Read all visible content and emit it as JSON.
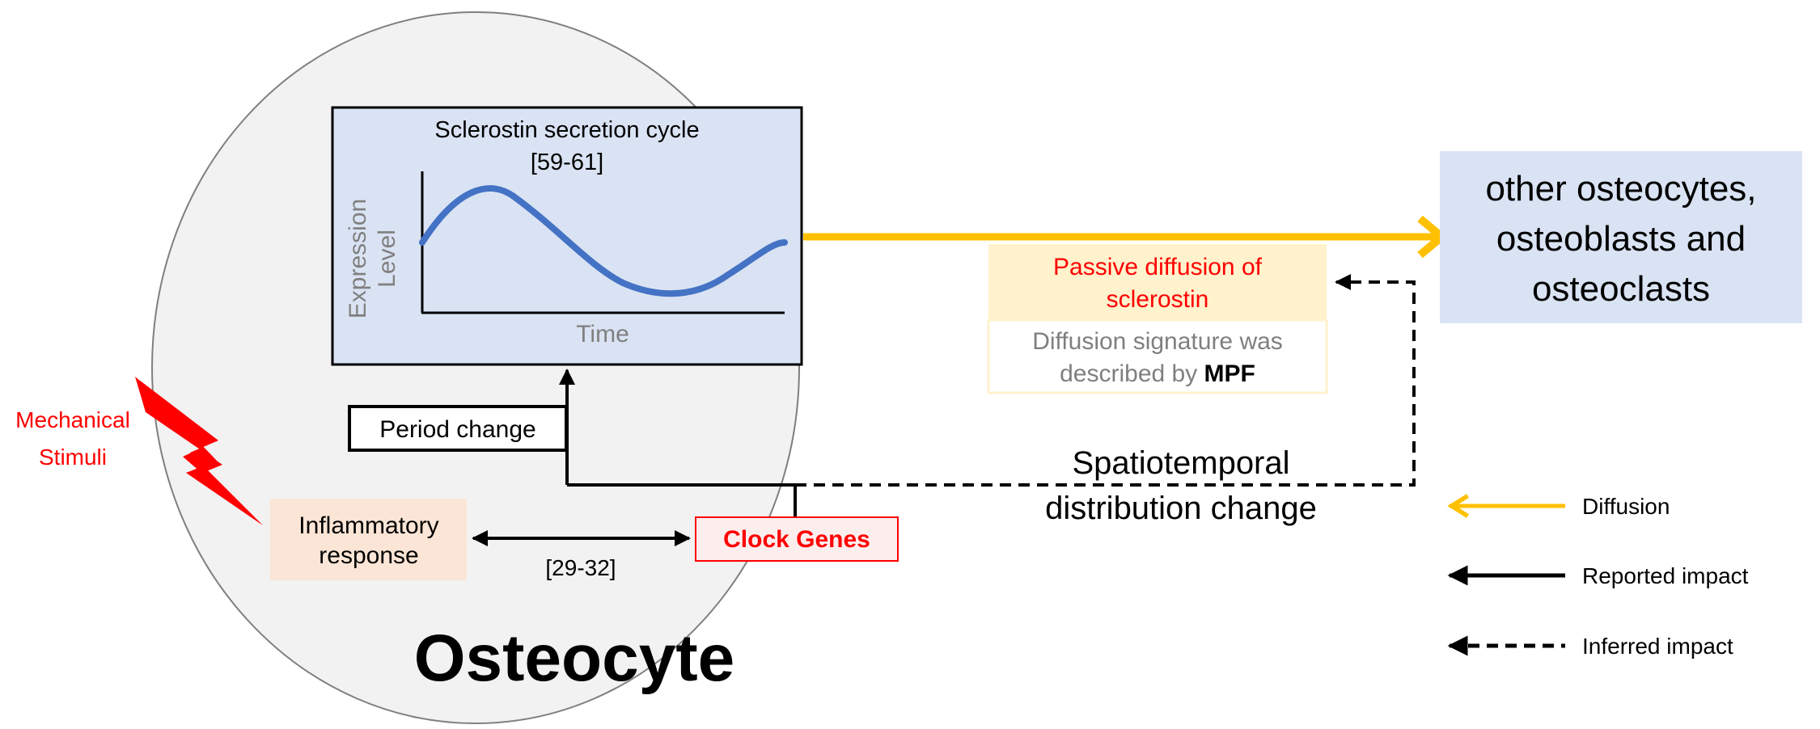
{
  "cell": {
    "label": "Osteocyte"
  },
  "stimulus": {
    "line1": "Mechanical",
    "line2": "Stimuli"
  },
  "secretion_box": {
    "title_line1": "Sclerostin secretion cycle",
    "title_line2": "[59-61]",
    "y_axis_line1": "Expression",
    "y_axis_line2": "Level",
    "x_axis": "Time"
  },
  "period_change": {
    "label": "Period change"
  },
  "inflammatory": {
    "line1": "Inflammatory",
    "line2": "response"
  },
  "clock_genes": {
    "label": "Clock Genes"
  },
  "link_ref": {
    "label": "[29-32]"
  },
  "passive_diffusion": {
    "line1": "Passive diffusion of",
    "line2": "sclerostin",
    "note_line1": "Diffusion signature was",
    "note_line2_prefix": "described by ",
    "note_line2_bold": "MPF"
  },
  "spatiotemporal": {
    "line1": "Spatiotemporal",
    "line2": "distribution change"
  },
  "targets": {
    "line1": "other osteocytes,",
    "line2": "osteoblasts and",
    "line3": "osteoclasts"
  },
  "legend": {
    "items": [
      {
        "label": "Diffusion",
        "style": "solid",
        "color": "#ffc000"
      },
      {
        "label": "Reported impact",
        "style": "solid",
        "color": "#000000"
      },
      {
        "label": "Inferred impact",
        "style": "dashed",
        "color": "#000000"
      }
    ]
  },
  "colors": {
    "cell_fill": "#f2f2f2",
    "secretion_fill": "#dae3f3",
    "curve": "#4472c4",
    "diffusion_arrow": "#ffc000",
    "inflammatory_fill": "#fbe5d6",
    "clock_fill": "#fdeeee",
    "accent_red": "#ff0000",
    "passive_fill": "#fff2cc",
    "target_fill": "#dae3f3"
  }
}
